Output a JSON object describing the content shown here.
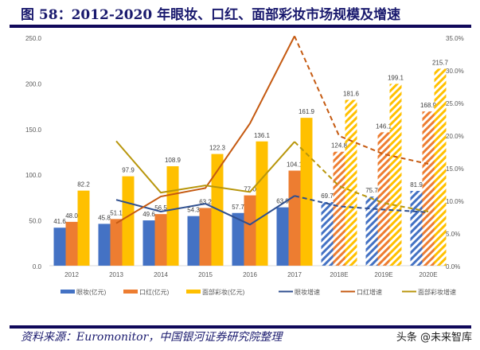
{
  "title": "图 58：2012-2020 年眼妆、口红、面部彩妆市场规模及增速",
  "source": "资料来源：Euromonitor，中国银河证券研究院整理",
  "watermark": "头条 @未来智库",
  "chart_data": {
    "type": "bar+line",
    "categories": [
      "2012",
      "2013",
      "2014",
      "2015",
      "2016",
      "2017",
      "2018E",
      "2019E",
      "2020E"
    ],
    "forecast_from": "2018E",
    "left_axis": {
      "ylim": [
        0,
        250
      ],
      "ticks": [
        "0.0",
        "50.0",
        "100.0",
        "150.0",
        "200.0",
        "250.0"
      ]
    },
    "right_axis": {
      "ylim": [
        0,
        35
      ],
      "ticks": [
        "0.0%",
        "5.0%",
        "10.0%",
        "15.0%",
        "20.0%",
        "25.0%",
        "30.0%",
        "35.0%"
      ]
    },
    "grid": false,
    "legend_position": "bottom",
    "bars": [
      {
        "name": "眼妆(亿元)",
        "color": "#4472c4",
        "values": [
          41.6,
          45.8,
          49.6,
          54.3,
          57.7,
          63.9,
          69.7,
          75.7,
          81.9
        ],
        "labels": [
          "41.6",
          "45.8",
          "49.6",
          "54.3",
          "57.7",
          "63.9",
          "69.7",
          "75.7",
          "81.9"
        ]
      },
      {
        "name": "口红(亿元)",
        "color": "#ed7d31",
        "values": [
          48.0,
          51.1,
          56.5,
          63.2,
          77.0,
          104.1,
          124.8,
          146.1,
          168.9
        ],
        "labels": [
          "48.0",
          "51.1",
          "56.5",
          "63.2",
          "77.0",
          "104.1",
          "124.8",
          "146.1",
          "168.9"
        ]
      },
      {
        "name": "面部彩妆(亿元)",
        "color": "#ffc000",
        "values": [
          82.2,
          97.9,
          108.9,
          122.3,
          136.1,
          161.9,
          181.6,
          199.1,
          215.7
        ],
        "labels": [
          "82.2",
          "97.9",
          "108.9",
          "122.3",
          "136.1",
          "161.9",
          "181.6",
          "199.1",
          "215.7"
        ]
      }
    ],
    "lines": [
      {
        "name": "眼妆增速",
        "color": "#2f4f8f",
        "values": [
          null,
          10.1,
          8.3,
          9.5,
          6.3,
          10.7,
          9.1,
          8.6,
          8.2
        ]
      },
      {
        "name": "口红增速",
        "color": "#c55a11",
        "values": [
          null,
          6.5,
          10.6,
          11.9,
          21.8,
          35.2,
          19.9,
          17.1,
          15.6
        ]
      },
      {
        "name": "面部彩妆增速",
        "color": "#b8960c",
        "values": [
          null,
          19.1,
          11.2,
          12.3,
          11.3,
          19.0,
          12.2,
          9.6,
          8.3
        ]
      }
    ]
  }
}
